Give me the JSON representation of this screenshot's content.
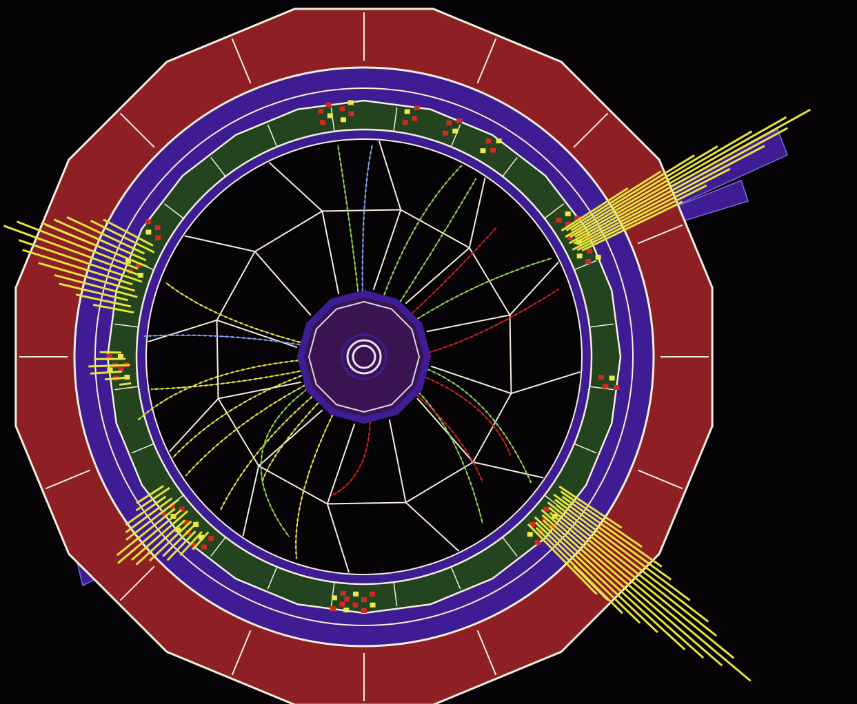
{
  "title": "",
  "colors": {
    "background": "#050306",
    "calorimeter_outer": "#8e1f25",
    "calorimeter_inner": "#23441f",
    "coil": "#3e1d94",
    "outline": "#f4f0de",
    "track_yellow": "#e6e43a",
    "track_green": "#8fd14c",
    "track_blue": "#7f9fe8",
    "track_red": "#c81f24",
    "hit_red": "#d12a22",
    "hit_yellow": "#eee84a"
  },
  "detector": {
    "outer_segments": 16,
    "inner_segments": 24,
    "drift_cells": 12
  },
  "event": {
    "jets": [
      {
        "name": "jet-upper-left",
        "color": "track_yellow"
      },
      {
        "name": "jet-upper-right",
        "color": "track_yellow"
      },
      {
        "name": "jet-lower-right",
        "color": "track_yellow"
      },
      {
        "name": "jet-lower-left",
        "color": "track_yellow"
      }
    ],
    "track_colors": [
      "track_yellow",
      "track_green",
      "track_blue",
      "track_red"
    ]
  }
}
